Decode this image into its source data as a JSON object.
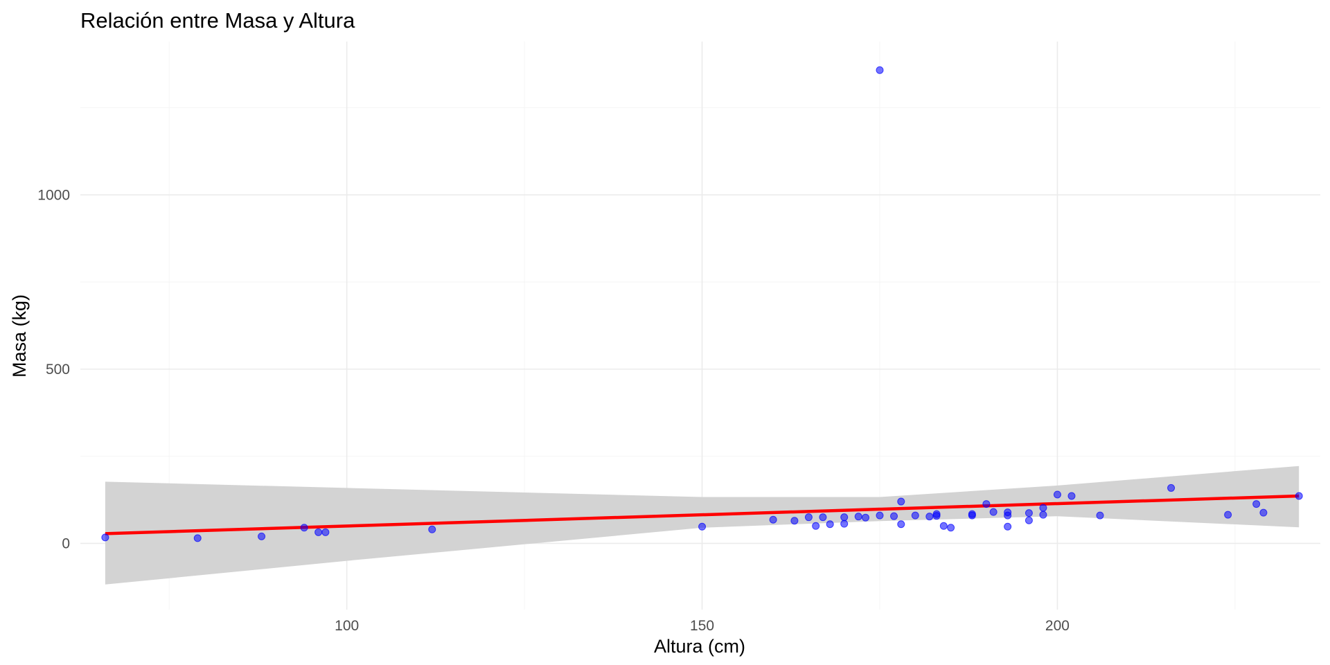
{
  "chart_data": {
    "type": "scatter",
    "title": "Relación entre Masa y Altura",
    "xlabel": "Altura (cm)",
    "ylabel": "Masa (kg)",
    "xlim": [
      62.5,
      237
    ],
    "ylim": [
      -190,
      1440
    ],
    "x_ticks": [
      100,
      150,
      200
    ],
    "x_tick_labels": [
      "100",
      "150",
      "200"
    ],
    "x_minor_ticks": [
      75,
      125,
      175,
      225
    ],
    "y_ticks": [
      0,
      500,
      1000
    ],
    "y_tick_labels": [
      "0",
      "500",
      "1000"
    ],
    "y_minor_ticks": [
      250,
      750,
      1250
    ],
    "grid": true,
    "legend": "none",
    "colors": {
      "points": "#0000ff",
      "trend_line": "#ff0000",
      "confidence_band": "#d3d3d3"
    },
    "points": [
      {
        "x": 66,
        "y": 17
      },
      {
        "x": 79,
        "y": 15
      },
      {
        "x": 88,
        "y": 20
      },
      {
        "x": 94,
        "y": 45
      },
      {
        "x": 96,
        "y": 32
      },
      {
        "x": 97,
        "y": 32
      },
      {
        "x": 112,
        "y": 40
      },
      {
        "x": 150,
        "y": 48
      },
      {
        "x": 160,
        "y": 68
      },
      {
        "x": 163,
        "y": 65
      },
      {
        "x": 165,
        "y": 75
      },
      {
        "x": 166,
        "y": 50
      },
      {
        "x": 167,
        "y": 75
      },
      {
        "x": 168,
        "y": 55
      },
      {
        "x": 170,
        "y": 56.2
      },
      {
        "x": 170,
        "y": 75
      },
      {
        "x": 172,
        "y": 77
      },
      {
        "x": 173,
        "y": 74
      },
      {
        "x": 175,
        "y": 1358
      },
      {
        "x": 175,
        "y": 80
      },
      {
        "x": 177,
        "y": 78
      },
      {
        "x": 178,
        "y": 55
      },
      {
        "x": 178,
        "y": 120
      },
      {
        "x": 180,
        "y": 80
      },
      {
        "x": 182,
        "y": 77
      },
      {
        "x": 183,
        "y": 79
      },
      {
        "x": 183,
        "y": 84
      },
      {
        "x": 184,
        "y": 50
      },
      {
        "x": 185,
        "y": 45
      },
      {
        "x": 188,
        "y": 84
      },
      {
        "x": 188,
        "y": 80
      },
      {
        "x": 190,
        "y": 113
      },
      {
        "x": 191,
        "y": 90
      },
      {
        "x": 193,
        "y": 89
      },
      {
        "x": 193,
        "y": 48
      },
      {
        "x": 193,
        "y": 80
      },
      {
        "x": 196,
        "y": 87
      },
      {
        "x": 196,
        "y": 66
      },
      {
        "x": 198,
        "y": 102
      },
      {
        "x": 198,
        "y": 82
      },
      {
        "x": 200,
        "y": 140
      },
      {
        "x": 202,
        "y": 136
      },
      {
        "x": 206,
        "y": 80
      },
      {
        "x": 216,
        "y": 159
      },
      {
        "x": 224,
        "y": 82
      },
      {
        "x": 228,
        "y": 113
      },
      {
        "x": 229,
        "y": 88
      },
      {
        "x": 234,
        "y": 136
      }
    ],
    "trend_line": {
      "method": "linear",
      "x": [
        66,
        234
      ],
      "y": [
        28,
        136
      ]
    },
    "confidence_band": [
      {
        "x": 66,
        "lower": -118,
        "upper": 177
      },
      {
        "x": 100,
        "lower": -50,
        "upper": 159
      },
      {
        "x": 150,
        "lower": 45,
        "upper": 133
      },
      {
        "x": 175,
        "lower": 64,
        "upper": 133
      },
      {
        "x": 200,
        "lower": 78,
        "upper": 166
      },
      {
        "x": 234,
        "lower": 46,
        "upper": 222
      }
    ]
  }
}
